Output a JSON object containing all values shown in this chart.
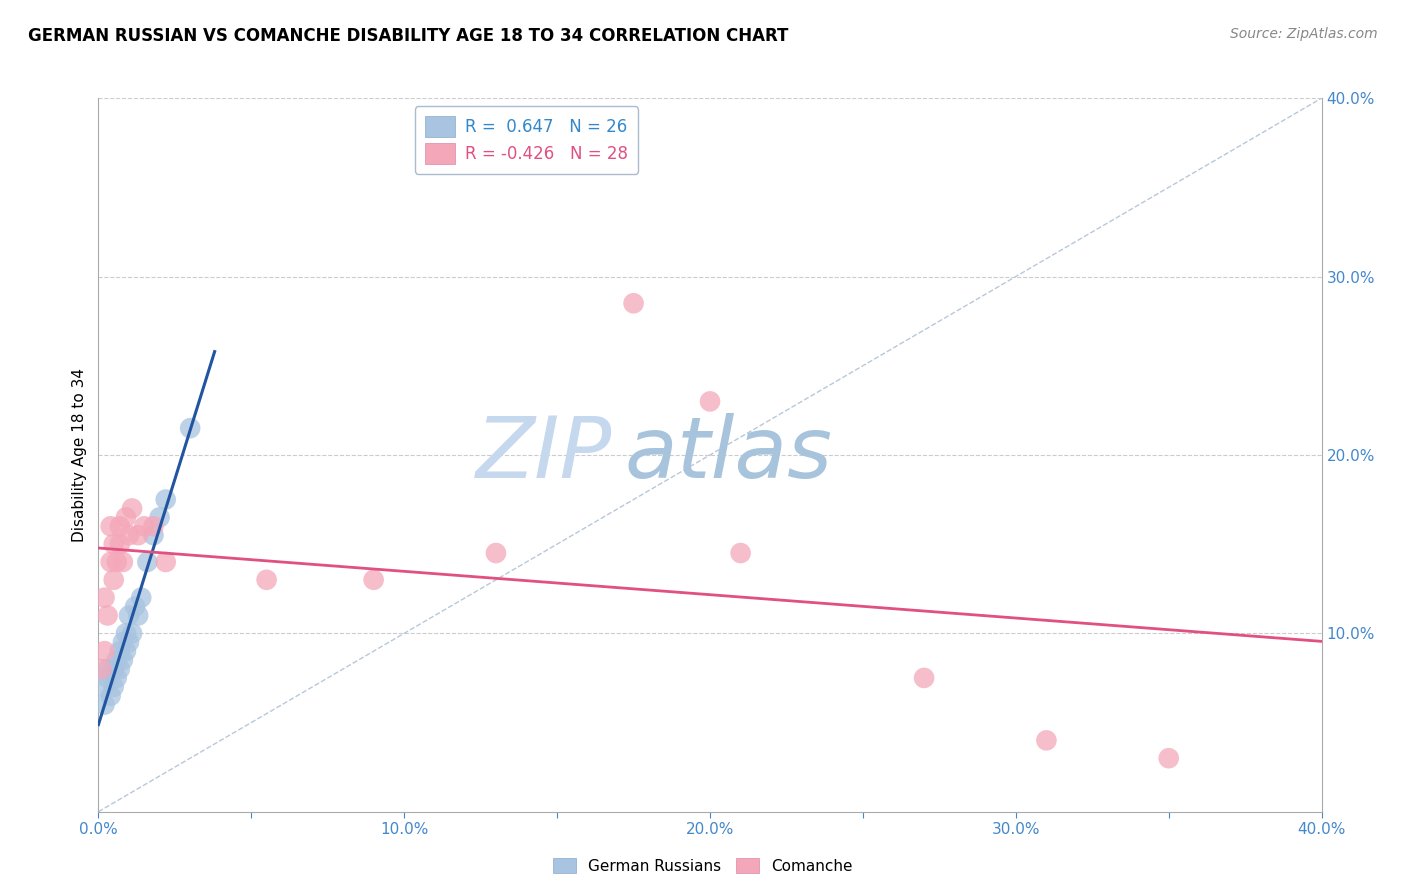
{
  "title": "GERMAN RUSSIAN VS COMANCHE DISABILITY AGE 18 TO 34 CORRELATION CHART",
  "source": "Source: ZipAtlas.com",
  "ylabel": "Disability Age 18 to 34",
  "xlim": [
    0.0,
    0.4
  ],
  "ylim": [
    0.0,
    0.4
  ],
  "xtick_labels": [
    "0.0%",
    "",
    "10.0%",
    "",
    "20.0%",
    "",
    "30.0%",
    "",
    "40.0%"
  ],
  "xtick_vals": [
    0.0,
    0.05,
    0.1,
    0.15,
    0.2,
    0.25,
    0.3,
    0.35,
    0.4
  ],
  "ytick_labels": [
    "10.0%",
    "20.0%",
    "30.0%",
    "40.0%"
  ],
  "ytick_vals": [
    0.1,
    0.2,
    0.3,
    0.4
  ],
  "r_german": 0.647,
  "n_german": 26,
  "r_comanche": -0.426,
  "n_comanche": 28,
  "german_color": "#a8c4e0",
  "comanche_color": "#f4a7b9",
  "german_line_color": "#2255a0",
  "comanche_line_color": "#e05080",
  "diagonal_color": "#b8c8d8",
  "background_color": "#ffffff",
  "grid_color": "#cccccc",
  "watermark_zip_color": "#c8d8e8",
  "watermark_atlas_color": "#b8cce0",
  "german_x": [
    0.002,
    0.002,
    0.003,
    0.003,
    0.004,
    0.005,
    0.005,
    0.006,
    0.006,
    0.007,
    0.007,
    0.008,
    0.008,
    0.009,
    0.009,
    0.01,
    0.01,
    0.011,
    0.012,
    0.013,
    0.014,
    0.016,
    0.018,
    0.02,
    0.022,
    0.03
  ],
  "german_y": [
    0.06,
    0.07,
    0.075,
    0.08,
    0.065,
    0.07,
    0.08,
    0.075,
    0.085,
    0.08,
    0.09,
    0.085,
    0.095,
    0.09,
    0.1,
    0.095,
    0.11,
    0.1,
    0.115,
    0.11,
    0.12,
    0.14,
    0.155,
    0.165,
    0.175,
    0.215
  ],
  "comanche_x": [
    0.001,
    0.002,
    0.002,
    0.003,
    0.004,
    0.004,
    0.005,
    0.005,
    0.006,
    0.007,
    0.007,
    0.008,
    0.009,
    0.01,
    0.011,
    0.013,
    0.015,
    0.018,
    0.022,
    0.055,
    0.09,
    0.13,
    0.175,
    0.2,
    0.21,
    0.27,
    0.31,
    0.35
  ],
  "comanche_y": [
    0.08,
    0.09,
    0.12,
    0.11,
    0.14,
    0.16,
    0.13,
    0.15,
    0.14,
    0.15,
    0.16,
    0.14,
    0.165,
    0.155,
    0.17,
    0.155,
    0.16,
    0.16,
    0.14,
    0.13,
    0.13,
    0.145,
    0.285,
    0.23,
    0.145,
    0.075,
    0.04,
    0.03
  ]
}
